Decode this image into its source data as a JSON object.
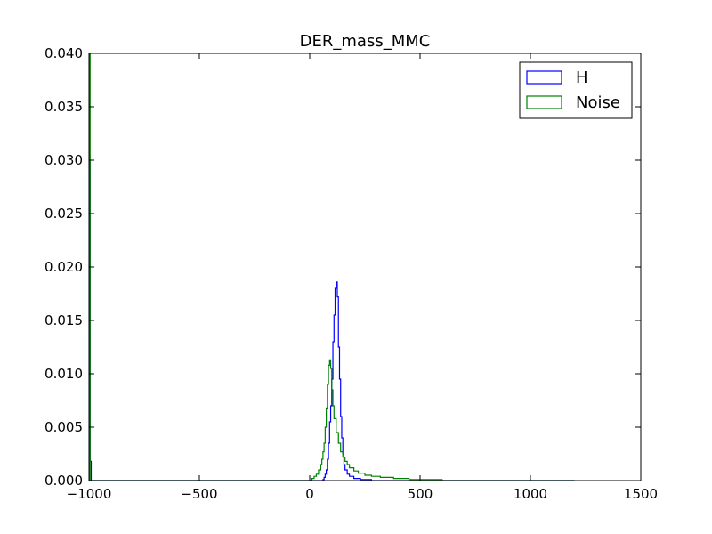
{
  "chart_data": {
    "type": "histogram",
    "title": "DER_mass_MMC",
    "xlabel": "",
    "ylabel": "",
    "xlim": [
      -1000,
      1500
    ],
    "ylim": [
      0,
      0.04
    ],
    "xticks": [
      -1000,
      -500,
      0,
      500,
      1000,
      1500
    ],
    "xtick_labels": [
      "−1000",
      "−500",
      "0",
      "500",
      "1000",
      "1500"
    ],
    "yticks": [
      0,
      0.005,
      0.01,
      0.015,
      0.02,
      0.025,
      0.03,
      0.035,
      0.04
    ],
    "ytick_labels": [
      "0.000",
      "0.005",
      "0.010",
      "0.015",
      "0.020",
      "0.025",
      "0.030",
      "0.035",
      "0.040"
    ],
    "legend_position": "top-right",
    "grid": false,
    "series": [
      {
        "name": "H",
        "color": "#0000ff",
        "points": [
          [
            -1000,
            0.0
          ],
          [
            -999,
            0.03
          ],
          [
            -995,
            0.0018
          ],
          [
            -990,
            0.0
          ],
          [
            40,
            0.0
          ],
          [
            60,
            0.0001
          ],
          [
            65,
            0.0003
          ],
          [
            70,
            0.0006
          ],
          [
            75,
            0.001
          ],
          [
            80,
            0.002
          ],
          [
            85,
            0.0035
          ],
          [
            90,
            0.0055
          ],
          [
            95,
            0.007
          ],
          [
            100,
            0.0095
          ],
          [
            105,
            0.013
          ],
          [
            110,
            0.0155
          ],
          [
            115,
            0.018
          ],
          [
            120,
            0.0186
          ],
          [
            125,
            0.0172
          ],
          [
            130,
            0.0125
          ],
          [
            135,
            0.0095
          ],
          [
            140,
            0.006
          ],
          [
            145,
            0.004
          ],
          [
            150,
            0.0025
          ],
          [
            155,
            0.0015
          ],
          [
            160,
            0.001
          ],
          [
            170,
            0.0006
          ],
          [
            180,
            0.0004
          ],
          [
            200,
            0.0002
          ],
          [
            230,
            0.0001
          ],
          [
            280,
            0.0
          ],
          [
            1200,
            0.0
          ]
        ]
      },
      {
        "name": "Noise",
        "color": "#008000",
        "points": [
          [
            -1000,
            0.0
          ],
          [
            -999,
            0.04
          ],
          [
            -995,
            0.0
          ],
          [
            0,
            0.0
          ],
          [
            10,
            0.0002
          ],
          [
            20,
            0.0004
          ],
          [
            30,
            0.0006
          ],
          [
            40,
            0.001
          ],
          [
            50,
            0.0015
          ],
          [
            55,
            0.002
          ],
          [
            60,
            0.0027
          ],
          [
            65,
            0.0035
          ],
          [
            70,
            0.005
          ],
          [
            75,
            0.0068
          ],
          [
            80,
            0.009
          ],
          [
            85,
            0.0108
          ],
          [
            90,
            0.0113
          ],
          [
            95,
            0.0105
          ],
          [
            100,
            0.0085
          ],
          [
            105,
            0.007
          ],
          [
            110,
            0.0058
          ],
          [
            120,
            0.0045
          ],
          [
            130,
            0.0035
          ],
          [
            140,
            0.0027
          ],
          [
            150,
            0.0022
          ],
          [
            160,
            0.0018
          ],
          [
            170,
            0.0015
          ],
          [
            180,
            0.0012
          ],
          [
            200,
            0.0009
          ],
          [
            220,
            0.0007
          ],
          [
            250,
            0.0005
          ],
          [
            280,
            0.0004
          ],
          [
            320,
            0.0003
          ],
          [
            380,
            0.0002
          ],
          [
            450,
            0.0001
          ],
          [
            600,
            0.0
          ],
          [
            1200,
            0.0
          ]
        ]
      }
    ]
  }
}
